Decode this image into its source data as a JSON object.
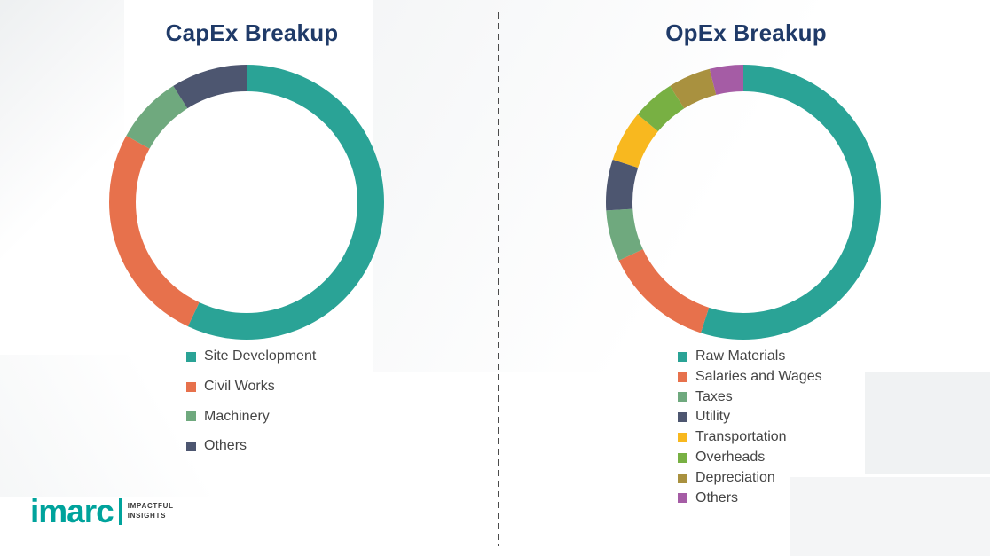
{
  "page": {
    "background_color": "#ffffff",
    "title_color": "#1f3a68"
  },
  "chart_data": [
    {
      "type": "pie",
      "subtype": "donut",
      "title": "CapEx Breakup",
      "labels": [
        "Site Development",
        "Civil Works",
        "Machinery",
        "Others"
      ],
      "values": [
        57,
        26,
        8,
        9
      ],
      "colors": [
        "#2aa396",
        "#e7714c",
        "#6fa97e",
        "#4d5670"
      ],
      "legend_position": "below-left",
      "value_labels_shown": false,
      "units": "percent-of-total (estimated from arc angles)"
    },
    {
      "type": "pie",
      "subtype": "donut",
      "title": "OpEx Breakup",
      "labels": [
        "Raw Materials",
        "Salaries and Wages",
        "Taxes",
        "Utility",
        "Transportation",
        "Overheads",
        "Depreciation",
        "Others"
      ],
      "values": [
        55,
        13,
        6,
        6,
        6,
        5,
        5,
        4
      ],
      "colors": [
        "#2aa396",
        "#e7714c",
        "#6fa97e",
        "#4d5670",
        "#f8b81f",
        "#78b043",
        "#a9913f",
        "#a55ca5"
      ],
      "legend_position": "below-left",
      "value_labels_shown": false,
      "units": "percent-of-total (estimated from arc angles)"
    }
  ],
  "logo": {
    "brand": "imarc",
    "tagline_line1": "IMPACTFUL",
    "tagline_line2": "INSIGHTS",
    "brand_color": "#00a39c"
  }
}
